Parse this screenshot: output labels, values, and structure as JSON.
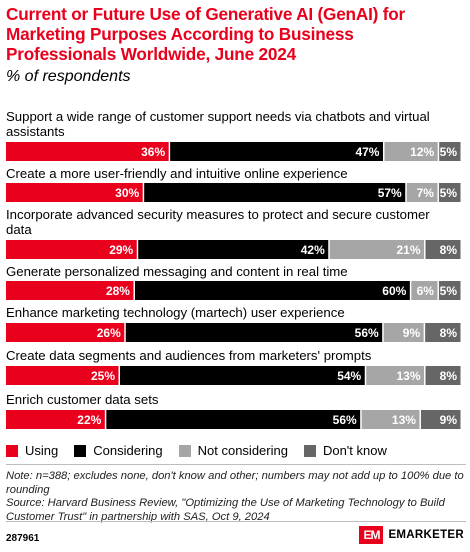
{
  "header": {
    "title": "Current or Future Use of Generative AI (GenAI) for Marketing Purposes According to Business Professionals Worldwide, June 2024",
    "subtitle": "% of respondents"
  },
  "chart_data": {
    "type": "bar",
    "orientation": "horizontal-stacked-100",
    "categories": [
      "Support a wide range of customer support needs via chatbots and virtual assistants",
      "Create a more user-friendly and intuitive online experience",
      "Incorporate advanced security measures to protect and secure customer data",
      "Generate personalized messaging and content in real time",
      "Enhance marketing technology (martech) user experience",
      "Create data segments and audiences from marketers' prompts",
      "Enrich customer data sets"
    ],
    "series": [
      {
        "name": "Using",
        "color": "#e8001c",
        "values": [
          36,
          30,
          29,
          28,
          26,
          25,
          22
        ]
      },
      {
        "name": "Considering",
        "color": "#000000",
        "values": [
          47,
          57,
          42,
          60,
          56,
          54,
          56
        ]
      },
      {
        "name": "Not considering",
        "color": "#a6a6a6",
        "values": [
          12,
          7,
          21,
          6,
          9,
          13,
          13
        ]
      },
      {
        "name": "Don't know",
        "color": "#666666",
        "values": [
          5,
          5,
          8,
          5,
          8,
          8,
          9
        ]
      }
    ],
    "value_suffix": "%",
    "legend_position": "bottom-left"
  },
  "notes": {
    "note": "Note: n=388; excludes none, don't know and other; numbers may not add up to 100% due to rounding",
    "source": "Source: Harvard Business Review, \"Optimizing the Use of Marketing Technology to Build Customer Trust\" in partnership with SAS, Oct 9, 2024"
  },
  "footer": {
    "chart_id": "287961",
    "brand_mark": "EM",
    "brand_name": "EMARKETER"
  }
}
